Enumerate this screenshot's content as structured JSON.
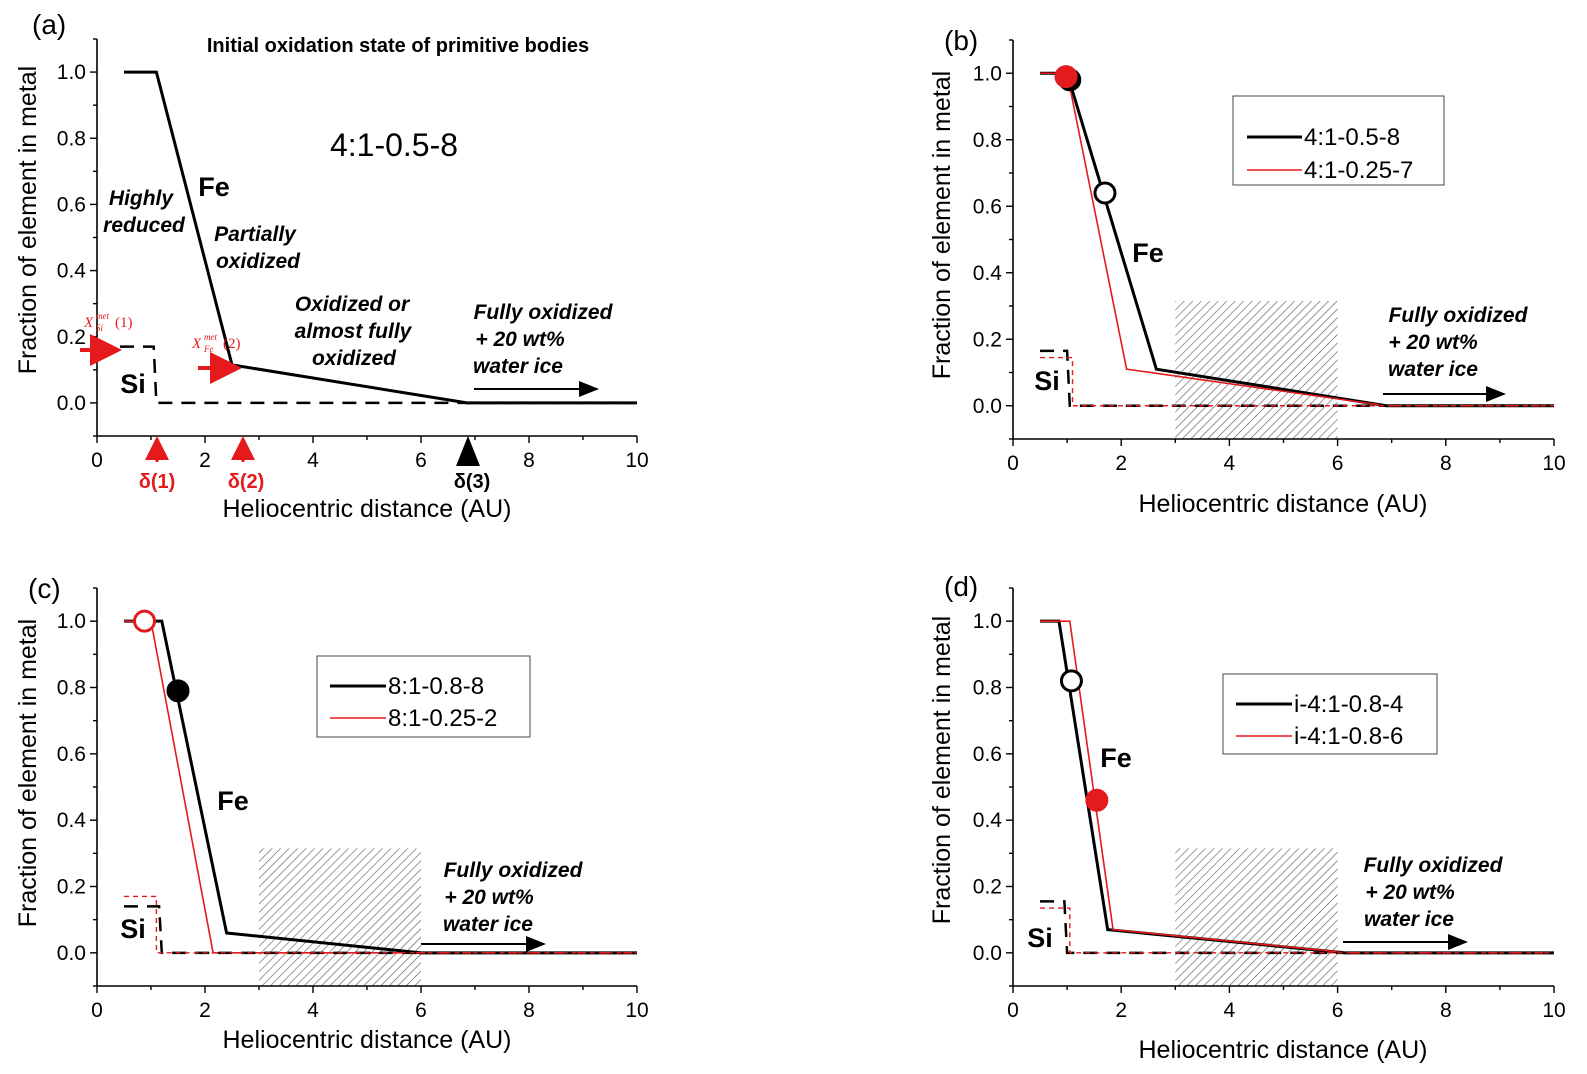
{
  "figure": {
    "x_ticks": [
      "0",
      "2",
      "4",
      "6",
      "8",
      "10"
    ],
    "y_ticks": [
      "0.0",
      "0.2",
      "0.4",
      "0.6",
      "0.8",
      "1.0"
    ],
    "xlabel": "Heliocentric distance (AU)",
    "ylabel": "Fraction of element in metal"
  },
  "panel_a": {
    "label": "(a)",
    "title": "Initial oxidation state of primitive bodies",
    "scenario": "4:1-0.5-8",
    "fe_label": "Fe",
    "si_label": "Si",
    "zone_highly": [
      "Highly",
      "reduced"
    ],
    "zone_partial": [
      "Partially",
      "oxidized"
    ],
    "zone_oxidized": [
      "Oxidized or",
      "almost fully",
      "oxidized"
    ],
    "zone_full": [
      "Fully oxidized",
      "+ 20 wt%",
      "water ice"
    ],
    "xsi_main": "X",
    "xsi_sup": "met",
    "xsi_sub": "Si",
    "xsi_tail": "(1)",
    "xfe_main": "X",
    "xfe_sup": "met",
    "xfe_sub": "Fe",
    "xfe_tail": "(2)",
    "delta1": "δ(1)",
    "delta2": "δ(2)",
    "delta3": "δ(3)"
  },
  "panel_b": {
    "label": "(b)",
    "fe_label": "Fe",
    "si_label": "Si",
    "annot": [
      "Fully oxidized",
      "+ 20 wt%",
      "water ice"
    ],
    "legend": [
      "4:1-0.5-8",
      "4:1-0.25-7"
    ]
  },
  "panel_c": {
    "label": "(c)",
    "fe_label": "Fe",
    "si_label": "Si",
    "annot": [
      "Fully oxidized",
      "+ 20 wt%",
      "water ice"
    ],
    "legend": [
      "8:1-0.8-8",
      "8:1-0.25-2"
    ]
  },
  "panel_d": {
    "label": "(d)",
    "fe_label": "Fe",
    "si_label": "Si",
    "annot": [
      "Fully oxidized",
      "+ 20 wt%",
      "water ice"
    ],
    "legend": [
      "i-4:1-0.8-4",
      "i-4:1-0.8-6"
    ]
  },
  "colors": {
    "series_1": "#000000",
    "series_2": "#e41a1c"
  },
  "chart_data": [
    {
      "type": "line",
      "panel": "(a)",
      "title": "Initial oxidation state of primitive bodies",
      "xlabel": "Heliocentric distance (AU)",
      "ylabel": "Fraction of element in metal",
      "xlim": [
        0,
        10
      ],
      "ylim": [
        -0.1,
        1.1
      ],
      "series": [
        {
          "name": "4:1-0.5-8",
          "element": "Fe",
          "x": [
            0.5,
            1.1,
            2.5,
            6.85,
            10
          ],
          "y": [
            1.0,
            1.0,
            0.115,
            0.0,
            0.0
          ]
        },
        {
          "name": "4:1-0.5-8",
          "element": "Si",
          "x": [
            0,
            1.05,
            1.1,
            10
          ],
          "y": [
            0.17,
            0.17,
            0.0,
            0.0
          ]
        }
      ],
      "markers": {
        "delta(1)": 1.1,
        "delta(2)": 2.5,
        "delta(3)": 6.85
      }
    },
    {
      "type": "line",
      "panel": "(b)",
      "xlabel": "Heliocentric distance (AU)",
      "ylabel": "Fraction of element in metal",
      "xlim": [
        0,
        10
      ],
      "ylim": [
        -0.1,
        1.1
      ],
      "shaded_x": [
        3,
        6
      ],
      "series": [
        {
          "name": "4:1-0.5-8",
          "element": "Fe",
          "x": [
            0.5,
            1.0,
            2.65,
            6.9,
            10
          ],
          "y": [
            1.0,
            1.0,
            0.11,
            0.0,
            0.0
          ]
        },
        {
          "name": "4:1-0.25-7",
          "element": "Fe",
          "x": [
            0.5,
            1.0,
            2.1,
            6.9,
            10
          ],
          "y": [
            1.0,
            1.0,
            0.11,
            0.0,
            0.0
          ]
        },
        {
          "name": "4:1-0.5-8",
          "element": "Si",
          "x": [
            0.5,
            1.0,
            1.05,
            10
          ],
          "y": [
            0.165,
            0.165,
            0.0,
            0.0
          ]
        },
        {
          "name": "4:1-0.25-7",
          "element": "Si",
          "x": [
            0.5,
            1.1,
            1.1,
            10
          ],
          "y": [
            0.145,
            0.145,
            0.0,
            0.0
          ]
        }
      ],
      "points": [
        {
          "x": 1.05,
          "y": 0.98,
          "filled": true,
          "color": "black"
        },
        {
          "x": 0.98,
          "y": 0.99,
          "filled": true,
          "color": "red"
        },
        {
          "x": 1.7,
          "y": 0.64,
          "filled": false,
          "color": "black"
        }
      ]
    },
    {
      "type": "line",
      "panel": "(c)",
      "xlabel": "Heliocentric distance (AU)",
      "ylabel": "Fraction of element in metal",
      "xlim": [
        0,
        10
      ],
      "ylim": [
        -0.1,
        1.1
      ],
      "shaded_x": [
        3,
        6
      ],
      "series": [
        {
          "name": "8:1-0.8-8",
          "element": "Fe",
          "x": [
            0.5,
            1.2,
            2.4,
            6.0,
            10
          ],
          "y": [
            1.0,
            1.0,
            0.06,
            0.0,
            0.0
          ]
        },
        {
          "name": "8:1-0.25-2",
          "element": "Fe",
          "x": [
            0.5,
            1.0,
            2.15,
            10
          ],
          "y": [
            1.0,
            1.0,
            0.0,
            0.0
          ]
        },
        {
          "name": "8:1-0.8-8",
          "element": "Si",
          "x": [
            0.5,
            1.15,
            1.2,
            10
          ],
          "y": [
            0.14,
            0.14,
            0.0,
            0.0
          ]
        },
        {
          "name": "8:1-0.25-2",
          "element": "Si",
          "x": [
            0.5,
            1.1,
            1.1,
            10
          ],
          "y": [
            0.17,
            0.17,
            0.0,
            0.0
          ]
        }
      ],
      "points": [
        {
          "x": 0.88,
          "y": 1.0,
          "filled": false,
          "color": "red"
        },
        {
          "x": 1.5,
          "y": 0.79,
          "filled": true,
          "color": "black"
        }
      ]
    },
    {
      "type": "line",
      "panel": "(d)",
      "xlabel": "Heliocentric distance (AU)",
      "ylabel": "Fraction of element in metal",
      "xlim": [
        0,
        10
      ],
      "ylim": [
        -0.1,
        1.1
      ],
      "shaded_x": [
        3,
        6
      ],
      "series": [
        {
          "name": "i-4:1-0.8-4",
          "element": "Fe",
          "x": [
            0.5,
            0.85,
            1.75,
            6.15,
            10
          ],
          "y": [
            1.0,
            1.0,
            0.07,
            0.0,
            0.0
          ]
        },
        {
          "name": "i-4:1-0.8-6",
          "element": "Fe",
          "x": [
            0.5,
            1.05,
            1.85,
            6.2,
            10
          ],
          "y": [
            1.0,
            1.0,
            0.07,
            0.0,
            0.0
          ]
        },
        {
          "name": "i-4:1-0.8-4",
          "element": "Si",
          "x": [
            0.5,
            0.95,
            1.0,
            10
          ],
          "y": [
            0.155,
            0.155,
            0.0,
            0.0
          ]
        },
        {
          "name": "i-4:1-0.8-6",
          "element": "Si",
          "x": [
            0.5,
            1.05,
            1.05,
            10
          ],
          "y": [
            0.135,
            0.135,
            0.0,
            0.0
          ]
        }
      ],
      "points": [
        {
          "x": 1.08,
          "y": 0.82,
          "filled": false,
          "color": "black"
        },
        {
          "x": 1.55,
          "y": 0.46,
          "filled": true,
          "color": "red"
        }
      ]
    }
  ]
}
